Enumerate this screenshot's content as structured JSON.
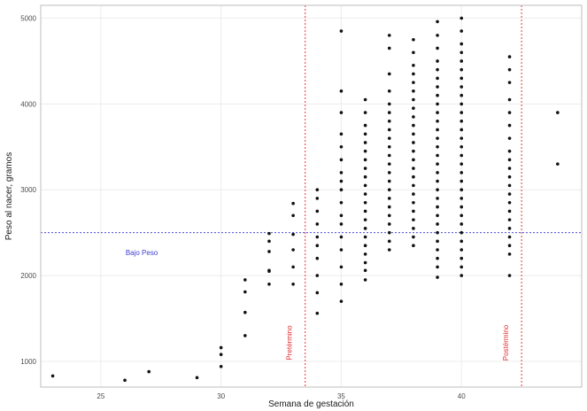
{
  "chart_data": {
    "type": "scatter",
    "title": "",
    "xlabel": "Semana de gestación",
    "ylabel": "Peso al nacer, gramos",
    "xlim": [
      22.5,
      45.0
    ],
    "ylim": [
      700,
      5150
    ],
    "x_ticks": [
      25,
      30,
      35,
      40
    ],
    "y_ticks": [
      1000,
      2000,
      3000,
      4000,
      5000
    ],
    "x_tick_labels": [
      "25",
      "30",
      "35",
      "40"
    ],
    "y_tick_labels": [
      "1000",
      "2000",
      "3000",
      "4000",
      "5000"
    ],
    "grid": true,
    "colors": {
      "points": "#111111",
      "hline": "#4b4bd6",
      "vline": "#ee3333",
      "grid": "#ececec",
      "frame": "#bdbdbd"
    },
    "hline": {
      "y": 2500,
      "label": "Bajo Peso",
      "label_x": 26.7,
      "label_y": 2270
    },
    "vlines": [
      {
        "x": 33.5,
        "label": "Pretérmino"
      },
      {
        "x": 42.5,
        "label": "Postérmino"
      }
    ],
    "series": [
      {
        "points": [
          [
            23,
            830
          ],
          [
            26,
            780
          ],
          [
            27,
            880
          ],
          [
            29,
            810
          ],
          [
            30,
            940
          ],
          [
            30,
            1080
          ],
          [
            30,
            1160
          ],
          [
            31,
            1300
          ],
          [
            31,
            1570
          ],
          [
            31,
            1810
          ],
          [
            31,
            1950
          ],
          [
            32,
            1900
          ],
          [
            32,
            2060
          ],
          [
            32,
            2280
          ],
          [
            32,
            2490
          ],
          [
            32,
            2400
          ],
          [
            32,
            2050
          ],
          [
            33,
            1900
          ],
          [
            33,
            2100
          ],
          [
            33,
            2300
          ],
          [
            33,
            2480
          ],
          [
            33,
            2700
          ],
          [
            33,
            2840
          ],
          [
            34,
            1560
          ],
          [
            34,
            1800
          ],
          [
            34,
            2000
          ],
          [
            34,
            2200
          ],
          [
            34,
            2350
          ],
          [
            34,
            2450
          ],
          [
            34,
            2600
          ],
          [
            34,
            2750
          ],
          [
            34,
            2900
          ],
          [
            34,
            3000
          ],
          [
            35,
            1700
          ],
          [
            35,
            1900
          ],
          [
            35,
            2100
          ],
          [
            35,
            2300
          ],
          [
            35,
            2450
          ],
          [
            35,
            2600
          ],
          [
            35,
            2700
          ],
          [
            35,
            2850
          ],
          [
            35,
            3000
          ],
          [
            35,
            3100
          ],
          [
            35,
            3200
          ],
          [
            35,
            3350
          ],
          [
            35,
            3500
          ],
          [
            35,
            3650
          ],
          [
            35,
            3900
          ],
          [
            35,
            4150
          ],
          [
            35,
            4850
          ],
          [
            36,
            1950
          ],
          [
            36,
            2060
          ],
          [
            36,
            2150
          ],
          [
            36,
            2250
          ],
          [
            36,
            2350
          ],
          [
            36,
            2450
          ],
          [
            36,
            2550
          ],
          [
            36,
            2650
          ],
          [
            36,
            2750
          ],
          [
            36,
            2850
          ],
          [
            36,
            2950
          ],
          [
            36,
            3050
          ],
          [
            36,
            3150
          ],
          [
            36,
            3250
          ],
          [
            36,
            3350
          ],
          [
            36,
            3450
          ],
          [
            36,
            3550
          ],
          [
            36,
            3650
          ],
          [
            36,
            3750
          ],
          [
            36,
            3900
          ],
          [
            36,
            4050
          ],
          [
            37,
            2300
          ],
          [
            37,
            2400
          ],
          [
            37,
            2500
          ],
          [
            37,
            2600
          ],
          [
            37,
            2700
          ],
          [
            37,
            2800
          ],
          [
            37,
            2900
          ],
          [
            37,
            3000
          ],
          [
            37,
            3100
          ],
          [
            37,
            3200
          ],
          [
            37,
            3300
          ],
          [
            37,
            3400
          ],
          [
            37,
            3500
          ],
          [
            37,
            3600
          ],
          [
            37,
            3700
          ],
          [
            37,
            3800
          ],
          [
            37,
            3900
          ],
          [
            37,
            4000
          ],
          [
            37,
            4150
          ],
          [
            37,
            4350
          ],
          [
            37,
            4650
          ],
          [
            37,
            4800
          ],
          [
            38,
            2350
          ],
          [
            38,
            2450
          ],
          [
            38,
            2550
          ],
          [
            38,
            2650
          ],
          [
            38,
            2750
          ],
          [
            38,
            2850
          ],
          [
            38,
            2950
          ],
          [
            38,
            3050
          ],
          [
            38,
            3150
          ],
          [
            38,
            3250
          ],
          [
            38,
            3350
          ],
          [
            38,
            3450
          ],
          [
            38,
            3550
          ],
          [
            38,
            3650
          ],
          [
            38,
            3750
          ],
          [
            38,
            3850
          ],
          [
            38,
            3950
          ],
          [
            38,
            4050
          ],
          [
            38,
            4150
          ],
          [
            38,
            4250
          ],
          [
            38,
            4350
          ],
          [
            38,
            4450
          ],
          [
            38,
            4600
          ],
          [
            38,
            4750
          ],
          [
            39,
            1980
          ],
          [
            39,
            2100
          ],
          [
            39,
            2200
          ],
          [
            39,
            2300
          ],
          [
            39,
            2400
          ],
          [
            39,
            2500
          ],
          [
            39,
            2600
          ],
          [
            39,
            2700
          ],
          [
            39,
            2800
          ],
          [
            39,
            2900
          ],
          [
            39,
            3000
          ],
          [
            39,
            3100
          ],
          [
            39,
            3200
          ],
          [
            39,
            3300
          ],
          [
            39,
            3400
          ],
          [
            39,
            3500
          ],
          [
            39,
            3600
          ],
          [
            39,
            3700
          ],
          [
            39,
            3800
          ],
          [
            39,
            3900
          ],
          [
            39,
            4000
          ],
          [
            39,
            4100
          ],
          [
            39,
            4200
          ],
          [
            39,
            4300
          ],
          [
            39,
            4400
          ],
          [
            39,
            4500
          ],
          [
            39,
            4650
          ],
          [
            39,
            4800
          ],
          [
            39,
            4960
          ],
          [
            40,
            2000
          ],
          [
            40,
            2100
          ],
          [
            40,
            2200
          ],
          [
            40,
            2300
          ],
          [
            40,
            2400
          ],
          [
            40,
            2500
          ],
          [
            40,
            2600
          ],
          [
            40,
            2700
          ],
          [
            40,
            2800
          ],
          [
            40,
            2900
          ],
          [
            40,
            3000
          ],
          [
            40,
            3100
          ],
          [
            40,
            3200
          ],
          [
            40,
            3300
          ],
          [
            40,
            3400
          ],
          [
            40,
            3500
          ],
          [
            40,
            3600
          ],
          [
            40,
            3700
          ],
          [
            40,
            3800
          ],
          [
            40,
            3900
          ],
          [
            40,
            4000
          ],
          [
            40,
            4100
          ],
          [
            40,
            4200
          ],
          [
            40,
            4300
          ],
          [
            40,
            4400
          ],
          [
            40,
            4500
          ],
          [
            40,
            4600
          ],
          [
            40,
            4700
          ],
          [
            40,
            4850
          ],
          [
            40,
            5000
          ],
          [
            42,
            2000
          ],
          [
            42,
            2250
          ],
          [
            42,
            2350
          ],
          [
            42,
            2450
          ],
          [
            42,
            2550
          ],
          [
            42,
            2650
          ],
          [
            42,
            2750
          ],
          [
            42,
            2850
          ],
          [
            42,
            2950
          ],
          [
            42,
            3050
          ],
          [
            42,
            3150
          ],
          [
            42,
            3250
          ],
          [
            42,
            3350
          ],
          [
            42,
            3450
          ],
          [
            42,
            3600
          ],
          [
            42,
            3750
          ],
          [
            42,
            3900
          ],
          [
            42,
            4050
          ],
          [
            42,
            4250
          ],
          [
            42,
            4400
          ],
          [
            42,
            4550
          ],
          [
            44,
            3300
          ],
          [
            44,
            3900
          ]
        ]
      }
    ]
  }
}
